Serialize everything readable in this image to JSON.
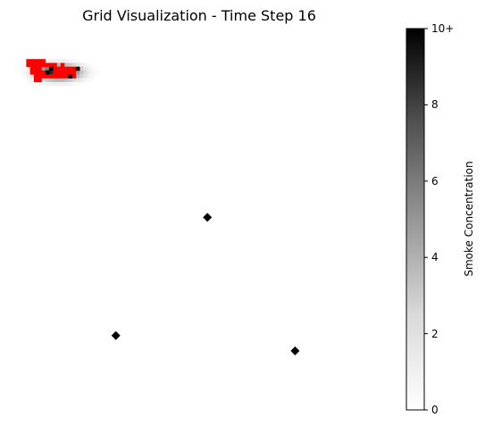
{
  "chart_data": {
    "type": "heatmap",
    "title": "Grid Visualization - Time Step 16",
    "colormap": "Greys",
    "colorbar": {
      "label": "Smoke Concentration",
      "ticks": [
        {
          "value": 0,
          "label": "0"
        },
        {
          "value": 2,
          "label": "2"
        },
        {
          "value": 4,
          "label": "4"
        },
        {
          "value": 6,
          "label": "6"
        },
        {
          "value": 8,
          "label": "8"
        },
        {
          "value": 10,
          "label": "10+"
        }
      ],
      "range": [
        0,
        10
      ]
    },
    "grid_size": 100,
    "smoke_plume": {
      "center": [
        13,
        11
      ],
      "spread_x": 5,
      "spread_y": 1.8,
      "peak": 10
    },
    "fire_color": "#ff0000",
    "fire_cells": [
      [
        5,
        8
      ],
      [
        6,
        8
      ],
      [
        7,
        8
      ],
      [
        8,
        8
      ],
      [
        9,
        8
      ],
      [
        5,
        9
      ],
      [
        6,
        9
      ],
      [
        7,
        9
      ],
      [
        8,
        9
      ],
      [
        9,
        9
      ],
      [
        10,
        9
      ],
      [
        11,
        9
      ],
      [
        12,
        9
      ],
      [
        14,
        9
      ],
      [
        6,
        10
      ],
      [
        7,
        10
      ],
      [
        8,
        10
      ],
      [
        11,
        10
      ],
      [
        12,
        10
      ],
      [
        13,
        10
      ],
      [
        14,
        10
      ],
      [
        15,
        10
      ],
      [
        16,
        10
      ],
      [
        17,
        10
      ],
      [
        6,
        11
      ],
      [
        7,
        11
      ],
      [
        8,
        11
      ],
      [
        9,
        11
      ],
      [
        10,
        11
      ],
      [
        12,
        11
      ],
      [
        13,
        11
      ],
      [
        14,
        11
      ],
      [
        15,
        11
      ],
      [
        16,
        11
      ],
      [
        17,
        11
      ],
      [
        7,
        12
      ],
      [
        8,
        12
      ],
      [
        9,
        12
      ],
      [
        10,
        12
      ],
      [
        11,
        12
      ],
      [
        12,
        12
      ],
      [
        13,
        12
      ],
      [
        14,
        12
      ],
      [
        15,
        12
      ],
      [
        17,
        12
      ],
      [
        7,
        13
      ],
      [
        8,
        13
      ]
    ],
    "dark_cells": [
      [
        11,
        10
      ],
      [
        18,
        10
      ],
      [
        10,
        11
      ],
      [
        16,
        12
      ]
    ],
    "markers": [
      {
        "shape": "diamond",
        "x": 52.5,
        "y": 49.5
      },
      {
        "shape": "diamond",
        "x": 28.5,
        "y": 80.5
      },
      {
        "shape": "diamond",
        "x": 75.5,
        "y": 84.5
      }
    ],
    "grid": false,
    "axes_visible": false
  }
}
